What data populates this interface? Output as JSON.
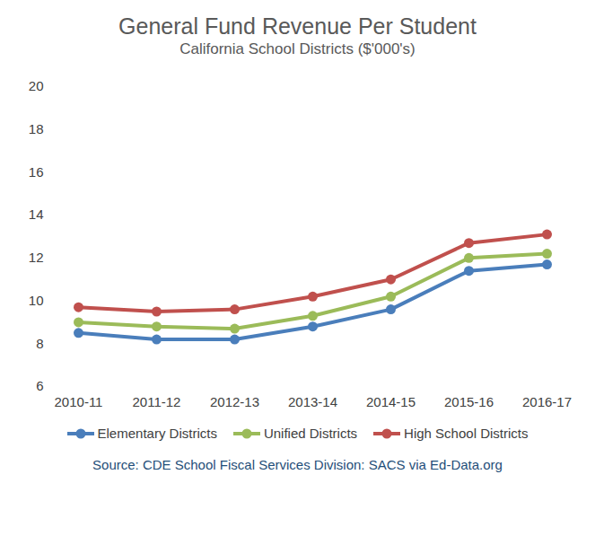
{
  "chart_data": {
    "type": "line",
    "title": "General Fund Revenue Per Student",
    "subtitle": "California School Districts ($'000's)",
    "caption": "Source: CDE School Fiscal Services Division: SACS via Ed-Data.org",
    "categories": [
      "2010-11",
      "2011-12",
      "2012-13",
      "2013-14",
      "2014-15",
      "2015-16",
      "2016-17"
    ],
    "series": [
      {
        "name": "Elementary Districts",
        "color": "#4a7ebb",
        "values": [
          8.5,
          8.2,
          8.2,
          8.8,
          9.6,
          11.4,
          11.7
        ]
      },
      {
        "name": "Unified Districts",
        "color": "#9bbb59",
        "values": [
          9.0,
          8.8,
          8.7,
          9.3,
          10.2,
          12.0,
          12.2
        ]
      },
      {
        "name": "High School Districts",
        "color": "#c0504d",
        "values": [
          9.7,
          9.5,
          9.6,
          10.2,
          11.0,
          12.7,
          13.1
        ]
      }
    ],
    "ylim": [
      6,
      20
    ],
    "yticks": [
      6,
      8,
      10,
      12,
      14,
      16,
      18,
      20
    ],
    "grid": false,
    "legend": "bottom",
    "marker": "circle"
  }
}
